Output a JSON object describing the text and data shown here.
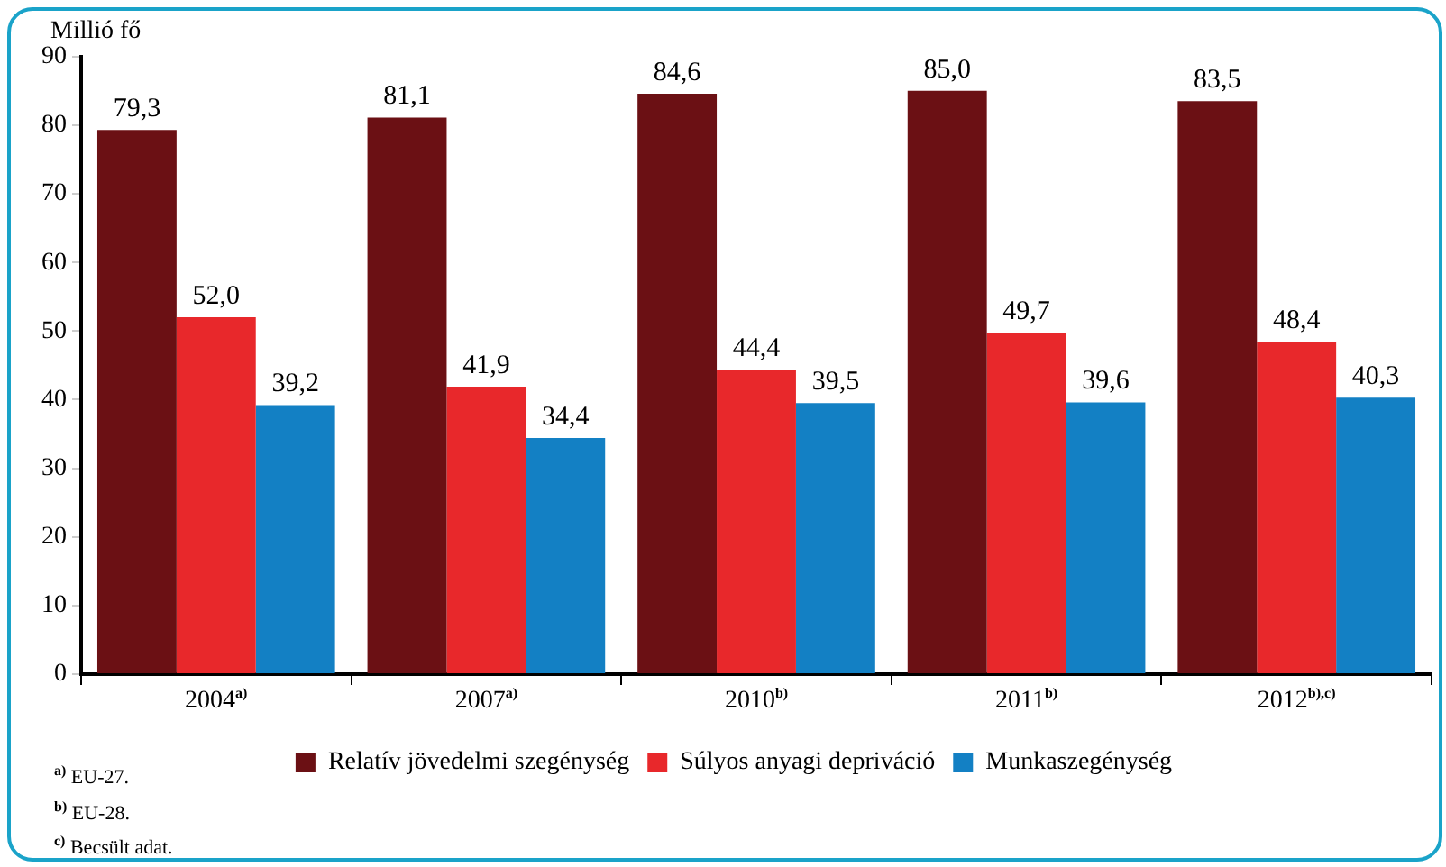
{
  "chart_data": {
    "type": "bar",
    "ylabel": "Millió fő",
    "categories": [
      "2004$^{a)}$",
      "2007$^{a)}$",
      "2010$^{b)}$",
      "2011$^{b)}$",
      "2012$^{b),c)}$"
    ],
    "series": [
      {
        "name": "Relatív jövedelmi szegénység",
        "color": "#6b1014",
        "values": [
          79.3,
          81.1,
          84.6,
          85.0,
          83.5
        ],
        "value_labels": [
          "79,3",
          "81,1",
          "84,6",
          "85,0",
          "83,5"
        ]
      },
      {
        "name": "Súlyos anyagi depriváció",
        "color": "#e8282b",
        "values": [
          52.0,
          41.9,
          44.4,
          49.7,
          48.4
        ],
        "value_labels": [
          "52,0",
          "41,9",
          "44,4",
          "49,7",
          "48,4"
        ]
      },
      {
        "name": "Munkaszegénység",
        "color": "#1380c4",
        "values": [
          39.2,
          34.4,
          39.5,
          39.6,
          40.3
        ],
        "value_labels": [
          "39,2",
          "34,4",
          "39,5",
          "39,6",
          "40,3"
        ]
      }
    ],
    "ylim": [
      0,
      90
    ],
    "yticks": [
      0,
      10,
      20,
      30,
      40,
      50,
      60,
      70,
      80,
      90
    ],
    "grid": false,
    "legend": "bottom",
    "annotations": [
      "$^{a)}$ EU-27.",
      "$^{b)}$ EU-28.",
      "$^{c)}$ Becsült adat."
    ]
  }
}
